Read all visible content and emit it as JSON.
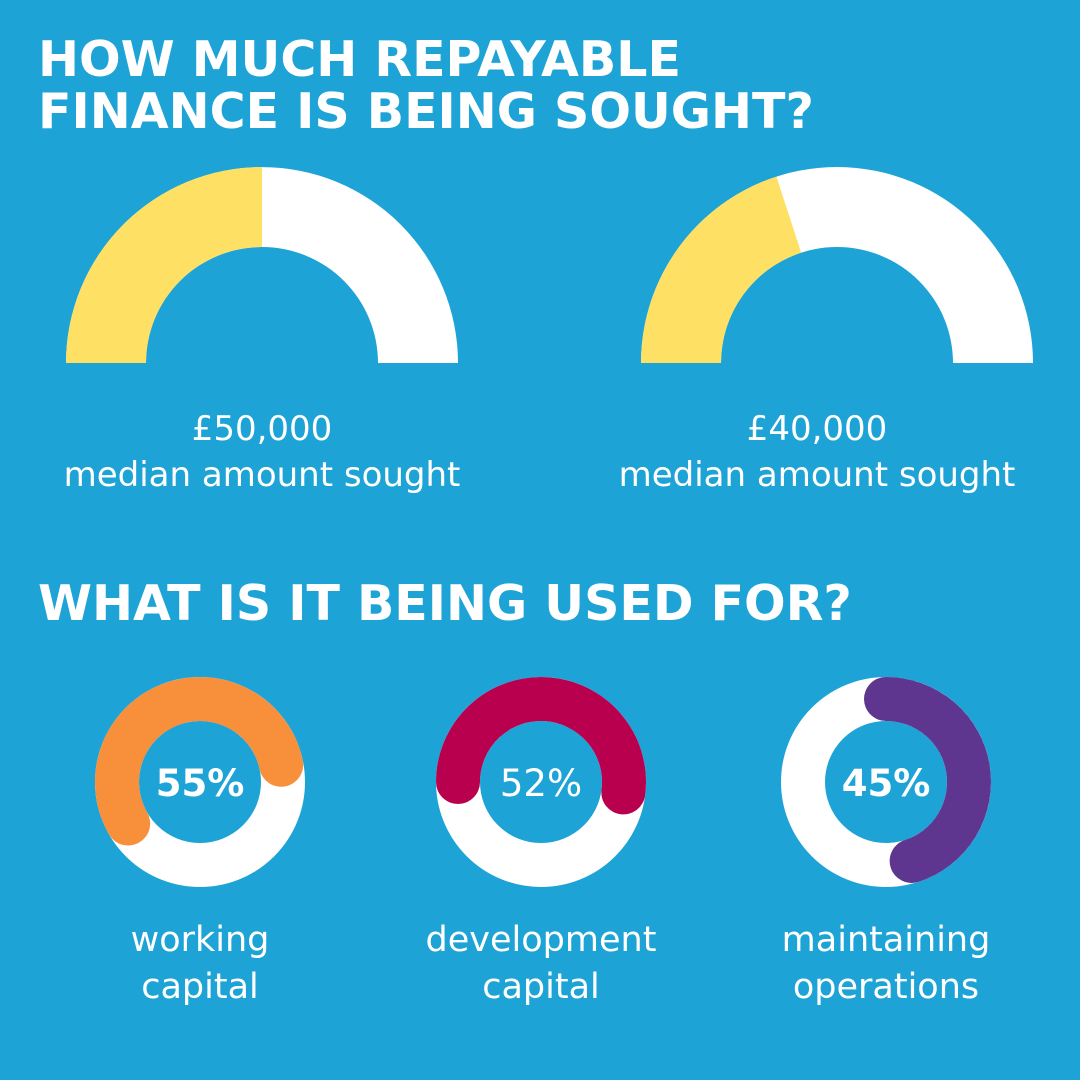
{
  "colors": {
    "background": "#1ea3d6",
    "track": "#ffffff",
    "gauge_fill": "#fde064",
    "working_capital": "#f78f3b",
    "development_capital": "#b8004f",
    "maintaining_operations": "#5e3690"
  },
  "headings": {
    "line1": "HOW MUCH REPAYABLE",
    "line2": "FINANCE IS BEING SOUGHT?",
    "line3": "WHAT IS IT BEING USED FOR?"
  },
  "chart_data": [
    {
      "type": "gauge",
      "gauges": [
        {
          "value_label": "£50,000",
          "caption": "median amount sought",
          "fill_fraction": 0.5
        },
        {
          "value_label": "£40,000",
          "caption": "median amount sought",
          "fill_fraction": 0.4
        }
      ]
    },
    {
      "type": "donut",
      "rings": [
        {
          "value": 55,
          "value_label": "55%",
          "label_line1": "working",
          "label_line2": "capital",
          "color_key": "working_capital",
          "start_deg": 210
        },
        {
          "value": 52,
          "value_label": "52%",
          "label_line1": "development",
          "label_line2": "capital",
          "color_key": "development_capital",
          "start_deg": 180
        },
        {
          "value": 45,
          "value_label": "45%",
          "label_line1": "maintaining",
          "label_line2": "operations",
          "color_key": "maintaining_operations",
          "start_deg": 90
        }
      ]
    }
  ]
}
